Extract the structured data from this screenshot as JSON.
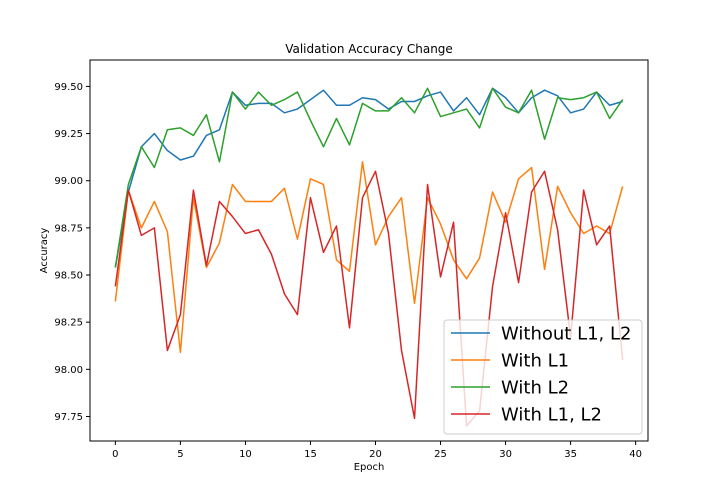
{
  "chart_data": {
    "type": "line",
    "title": "Validation Accuracy Change",
    "xlabel": "Epoch",
    "ylabel": "Accuracy",
    "xlim": [
      -1.95,
      40.95
    ],
    "ylim": [
      97.62,
      99.64
    ],
    "xticks": [
      0,
      5,
      10,
      15,
      20,
      25,
      30,
      35,
      40
    ],
    "xtick_labels": [
      "0",
      "5",
      "10",
      "15",
      "20",
      "25",
      "30",
      "35",
      "40"
    ],
    "yticks": [
      97.75,
      98.0,
      98.25,
      98.5,
      98.75,
      99.0,
      99.25,
      99.5
    ],
    "ytick_labels": [
      "97.75",
      "98.00",
      "98.25",
      "98.50",
      "98.75",
      "99.00",
      "99.25",
      "99.50"
    ],
    "grid": false,
    "legend_position": "bottom-right",
    "x": [
      0,
      1,
      2,
      3,
      4,
      5,
      6,
      7,
      8,
      9,
      10,
      11,
      12,
      13,
      14,
      15,
      16,
      17,
      18,
      19,
      20,
      21,
      22,
      23,
      24,
      25,
      26,
      27,
      28,
      29,
      30,
      31,
      32,
      33,
      34,
      35,
      36,
      37,
      38,
      39
    ],
    "series": [
      {
        "name": "Without L1, L2",
        "color": "#1f77b4",
        "values": [
          98.54,
          98.94,
          99.18,
          99.25,
          99.16,
          99.11,
          99.13,
          99.24,
          99.27,
          99.47,
          99.4,
          99.41,
          99.41,
          99.36,
          99.38,
          99.43,
          99.48,
          99.4,
          99.4,
          99.44,
          99.43,
          99.38,
          99.42,
          99.42,
          99.45,
          99.47,
          99.37,
          99.44,
          99.35,
          99.49,
          99.44,
          99.36,
          99.44,
          99.48,
          99.45,
          99.36,
          99.38,
          99.47,
          99.4,
          99.42
        ]
      },
      {
        "name": "With L1",
        "color": "#ff7f0e",
        "values": [
          98.36,
          98.95,
          98.75,
          98.89,
          98.73,
          98.09,
          98.91,
          98.54,
          98.67,
          98.98,
          98.89,
          98.89,
          98.89,
          98.96,
          98.69,
          99.01,
          98.98,
          98.58,
          98.52,
          99.1,
          98.66,
          98.81,
          98.91,
          98.35,
          98.91,
          98.77,
          98.58,
          98.48,
          98.59,
          98.94,
          98.78,
          99.01,
          99.07,
          98.53,
          98.97,
          98.83,
          98.72,
          98.76,
          98.72,
          98.97
        ]
      },
      {
        "name": "With L2",
        "color": "#2ca02c",
        "values": [
          98.54,
          98.98,
          99.18,
          99.07,
          99.27,
          99.28,
          99.24,
          99.35,
          99.1,
          99.47,
          99.38,
          99.47,
          99.4,
          99.43,
          99.47,
          99.32,
          99.18,
          99.33,
          99.19,
          99.41,
          99.37,
          99.37,
          99.44,
          99.36,
          99.49,
          99.34,
          99.36,
          99.38,
          99.28,
          99.49,
          99.39,
          99.36,
          99.48,
          99.22,
          99.44,
          99.43,
          99.44,
          99.47,
          99.33,
          99.43
        ]
      },
      {
        "name": "With L1, L2",
        "color": "#d62728",
        "values": [
          98.44,
          98.95,
          98.71,
          98.75,
          98.1,
          98.29,
          98.95,
          98.55,
          98.89,
          98.81,
          98.72,
          98.74,
          98.61,
          98.4,
          98.29,
          98.91,
          98.62,
          98.76,
          98.22,
          98.91,
          99.05,
          98.72,
          98.1,
          97.74,
          98.98,
          98.49,
          98.78,
          97.7,
          97.78,
          98.44,
          98.83,
          98.46,
          98.94,
          99.05,
          98.74,
          98.17,
          98.95,
          98.66,
          98.76,
          98.05
        ]
      }
    ]
  }
}
